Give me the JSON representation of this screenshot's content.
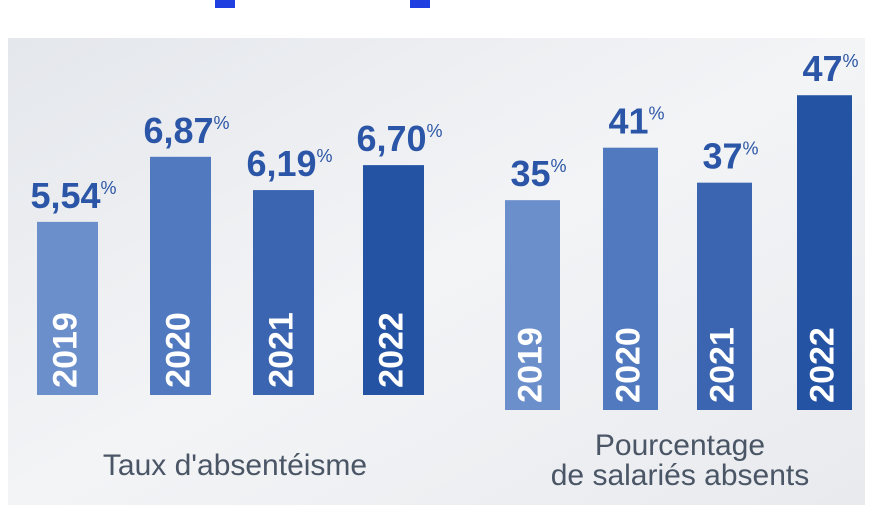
{
  "chart_data": [
    {
      "type": "bar",
      "title": [
        "Taux d'absentéisme"
      ],
      "categories": [
        "2019",
        "2020",
        "2021",
        "2022"
      ],
      "values": [
        5.54,
        6.87,
        6.19,
        6.7
      ],
      "value_labels": [
        "5,54",
        "6,87",
        "6,19",
        "6,70"
      ],
      "unit": "%",
      "colors": [
        "#6b8fcb",
        "#5079bf",
        "#3c65b1",
        "#2553a3"
      ],
      "ylim": [
        2,
        7.5
      ]
    },
    {
      "type": "bar",
      "title": [
        "Pourcentage",
        "de salariés absents"
      ],
      "categories": [
        "2019",
        "2020",
        "2021",
        "2022"
      ],
      "values": [
        35,
        41,
        37,
        47
      ],
      "value_labels": [
        "35",
        "41",
        "37",
        "47"
      ],
      "unit": "%",
      "colors": [
        "#6b8fcb",
        "#5079bf",
        "#3c65b1",
        "#2553a3"
      ],
      "ylim": [
        11,
        50
      ]
    }
  ]
}
